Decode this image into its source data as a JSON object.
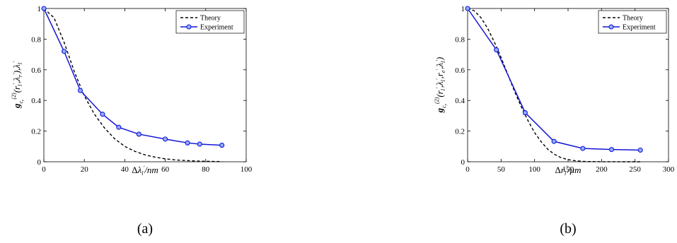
{
  "chart_data": [
    {
      "type": "line",
      "panel_label": "(a)",
      "xlabel": "Δλ_l'/nm",
      "ylabel": "g_{c_r}^{(2)}(r_l', λ_r'), λ_l'",
      "xlim": [
        0,
        100
      ],
      "ylim": [
        0,
        1
      ],
      "x_ticks": [
        "0",
        "20",
        "40",
        "60",
        "80",
        "100"
      ],
      "y_ticks": [
        "0",
        "0.2",
        "0.4",
        "0.6",
        "0.8",
        "1"
      ],
      "grid": false,
      "legend": "top-right",
      "series": [
        {
          "name": "Theory",
          "style": "dashed",
          "color": "#000000",
          "x": [
            0,
            5,
            10,
            15,
            20,
            25,
            30,
            35,
            40,
            45,
            50,
            55,
            60,
            65,
            70,
            75,
            80,
            85,
            88
          ],
          "y": [
            1.0,
            0.94,
            0.78,
            0.59,
            0.43,
            0.31,
            0.22,
            0.15,
            0.1,
            0.068,
            0.045,
            0.03,
            0.019,
            0.012,
            0.008,
            0.005,
            0.003,
            0.002,
            0.001
          ]
        },
        {
          "name": "Experiment",
          "style": "solid-markers",
          "color": "#1414d6",
          "x": [
            0,
            10,
            18,
            29,
            37,
            47,
            60,
            71,
            77,
            88
          ],
          "y": [
            1.0,
            0.72,
            0.465,
            0.31,
            0.225,
            0.18,
            0.148,
            0.123,
            0.115,
            0.108
          ]
        }
      ]
    },
    {
      "type": "line",
      "panel_label": "(b)",
      "xlabel": "Δr_l'/μm",
      "ylabel": "g_{c_r}^{(2)}(r_l', λ_l', r_e', λ_l')",
      "xlim": [
        0,
        300
      ],
      "ylim": [
        0,
        1
      ],
      "x_ticks": [
        "0",
        "50",
        "100",
        "150",
        "200",
        "250",
        "300"
      ],
      "y_ticks": [
        "0",
        "0.2",
        "0.4",
        "0.6",
        "0.8",
        "1"
      ],
      "grid": false,
      "legend": "top-right",
      "series": [
        {
          "name": "Theory",
          "style": "dashed",
          "color": "#000000",
          "x": [
            0,
            10,
            20,
            30,
            40,
            50,
            60,
            70,
            80,
            90,
            100,
            110,
            120,
            130,
            140,
            150,
            160,
            170,
            180,
            200,
            220,
            240,
            258
          ],
          "y": [
            1.0,
            0.985,
            0.94,
            0.87,
            0.78,
            0.68,
            0.57,
            0.46,
            0.36,
            0.27,
            0.19,
            0.13,
            0.08,
            0.048,
            0.026,
            0.014,
            0.007,
            0.003,
            0.0015,
            0.0003,
            0.0001,
            0.0,
            0.0
          ]
        },
        {
          "name": "Experiment",
          "style": "solid-markers",
          "color": "#1414d6",
          "x": [
            0,
            43,
            86,
            129,
            172,
            215,
            258
          ],
          "y": [
            1.0,
            0.73,
            0.32,
            0.133,
            0.087,
            0.08,
            0.076
          ]
        }
      ]
    }
  ]
}
